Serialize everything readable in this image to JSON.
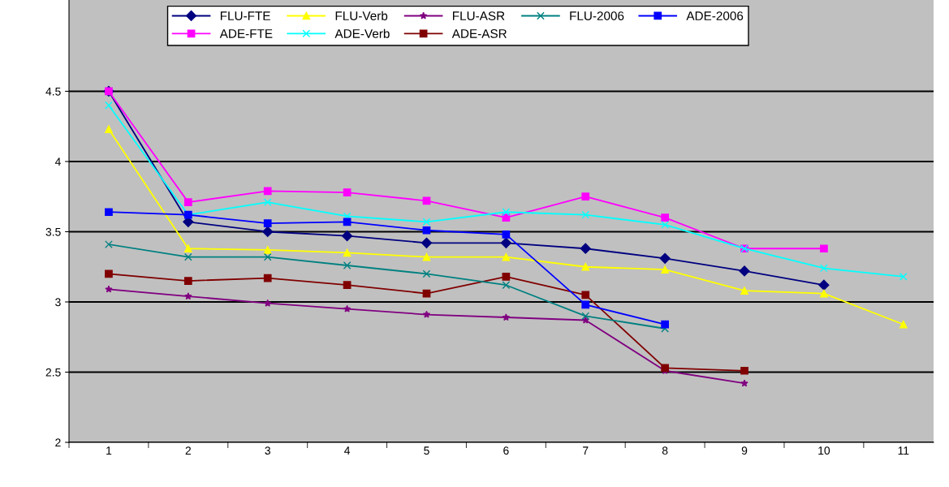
{
  "chart_data": {
    "type": "line",
    "categories": [
      "1",
      "2",
      "3",
      "4",
      "5",
      "6",
      "7",
      "8",
      "9",
      "10",
      "11"
    ],
    "ylim": [
      2,
      5.15
    ],
    "yticks": [
      2,
      2.5,
      3,
      3.5,
      4,
      4.5
    ],
    "grid": "y",
    "legend": "top",
    "series": [
      {
        "name": "FLU-FTE",
        "color": "#000080",
        "marker": "diamond",
        "values": [
          4.5,
          3.57,
          3.5,
          3.47,
          3.42,
          3.42,
          3.38,
          3.31,
          3.22,
          3.12,
          null
        ]
      },
      {
        "name": "ADE-FTE",
        "color": "#ff00ff",
        "marker": "square",
        "values": [
          4.5,
          3.71,
          3.79,
          3.78,
          3.72,
          3.6,
          3.75,
          3.6,
          3.38,
          3.38,
          null
        ]
      },
      {
        "name": "FLU-Verb",
        "color": "#ffff00",
        "marker": "triangle",
        "values": [
          4.23,
          3.38,
          3.37,
          3.35,
          3.32,
          3.32,
          3.25,
          3.23,
          3.08,
          3.06,
          2.84
        ]
      },
      {
        "name": "ADE-Verb",
        "color": "#00ffff",
        "marker": "cross",
        "values": [
          4.4,
          3.62,
          3.71,
          3.61,
          3.57,
          3.64,
          3.62,
          3.55,
          3.38,
          3.24,
          3.18
        ]
      },
      {
        "name": "FLU-ASR",
        "color": "#800080",
        "marker": "star",
        "values": [
          3.09,
          3.04,
          2.99,
          2.95,
          2.91,
          2.89,
          2.87,
          2.51,
          2.42,
          null,
          null
        ]
      },
      {
        "name": "ADE-ASR",
        "color": "#800000",
        "marker": "square",
        "values": [
          3.2,
          3.15,
          3.17,
          3.12,
          3.06,
          3.18,
          3.05,
          2.53,
          2.51,
          null,
          null
        ]
      },
      {
        "name": "FLU-2006",
        "color": "#008080",
        "marker": "cross",
        "values": [
          3.41,
          3.32,
          3.32,
          3.26,
          3.2,
          3.12,
          2.9,
          2.81,
          null,
          null,
          null
        ]
      },
      {
        "name": "ADE-2006",
        "color": "#0000ff",
        "marker": "square",
        "values": [
          3.64,
          3.62,
          3.56,
          3.57,
          3.51,
          3.48,
          2.98,
          2.84,
          null,
          null,
          null
        ]
      }
    ]
  }
}
